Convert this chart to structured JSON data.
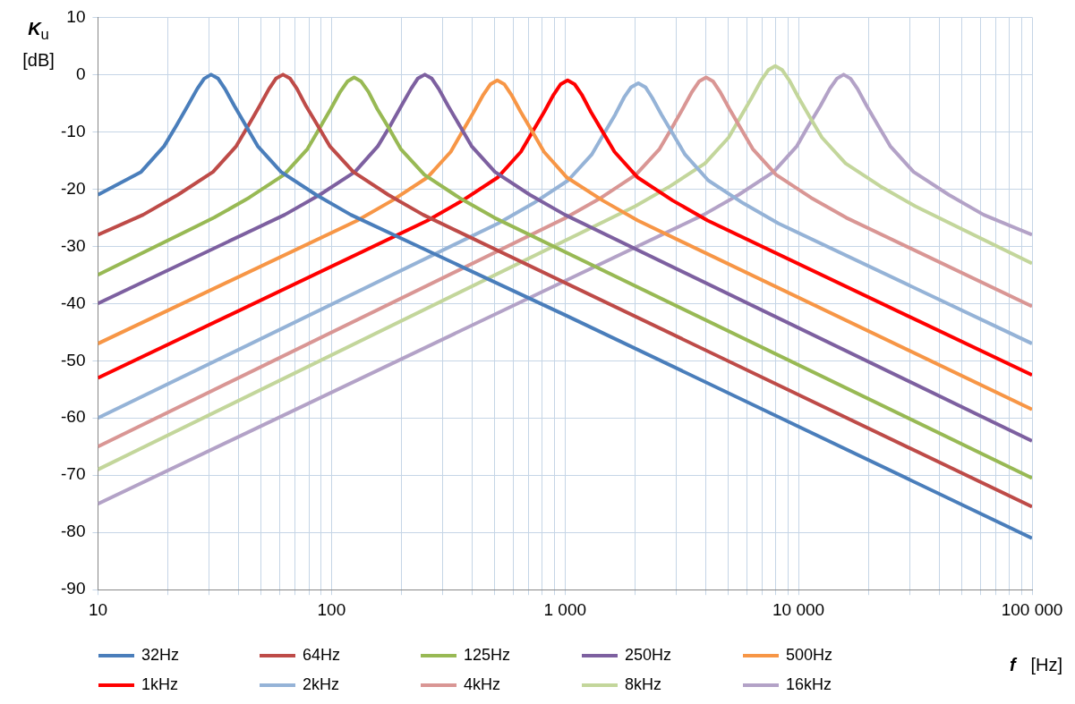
{
  "chart_data": {
    "type": "line",
    "xlabel": "f [Hz]",
    "ylabel": "K$_{u}$ [dB]",
    "log": "x",
    "grid": true,
    "legend": "bottom",
    "marker": "none",
    "line_style": "solid",
    "xlim": [
      10,
      100000
    ],
    "ylim": [
      -90,
      10
    ],
    "xticks": [
      10,
      {
        "value": 20,
        "label": null
      },
      {
        "value": 30,
        "label": null
      },
      {
        "value": 40,
        "label": null
      },
      {
        "value": 50,
        "label": null
      },
      {
        "value": 60,
        "label": null
      },
      {
        "value": 70,
        "label": null
      },
      {
        "value": 80,
        "label": null
      },
      {
        "value": 90,
        "label": null
      },
      100,
      {
        "value": 200,
        "label": null
      },
      {
        "value": 300,
        "label": null
      },
      {
        "value": 400,
        "label": null
      },
      {
        "value": 500,
        "label": null
      },
      {
        "value": 600,
        "label": null
      },
      {
        "value": 700,
        "label": null
      },
      {
        "value": 800,
        "label": null
      },
      {
        "value": 900,
        "label": null
      },
      {
        "value": 1000,
        "label": "1 000"
      },
      {
        "value": 2000,
        "label": null
      },
      {
        "value": 3000,
        "label": null
      },
      {
        "value": 4000,
        "label": null
      },
      {
        "value": 5000,
        "label": null
      },
      {
        "value": 6000,
        "label": null
      },
      {
        "value": 7000,
        "label": null
      },
      {
        "value": 8000,
        "label": null
      },
      {
        "value": 9000,
        "label": null
      },
      {
        "value": 10000,
        "label": "10 000"
      },
      {
        "value": 20000,
        "label": null
      },
      {
        "value": 30000,
        "label": null
      },
      {
        "value": 40000,
        "label": null
      },
      {
        "value": 50000,
        "label": null
      },
      {
        "value": 60000,
        "label": null
      },
      {
        "value": 70000,
        "label": null
      },
      {
        "value": 80000,
        "label": null
      },
      {
        "value": 90000,
        "label": null
      },
      {
        "value": 100000,
        "label": "100 000"
      }
    ],
    "yticks": [
      10,
      0,
      -10,
      -20,
      -30,
      -40,
      -50,
      -60,
      -70,
      -80,
      -90
    ],
    "series": [
      {
        "name": "32Hz",
        "color": "#4a7ebb",
        "x": [
          10,
          15.3,
          19.2,
          21.6,
          24.2,
          26.6,
          28.5,
          30.5,
          32.7,
          35,
          38.4,
          43.1,
          48.3,
          60.8,
          85.9,
          121,
          1000,
          100000
        ],
        "values": [
          -21,
          -17,
          -12.5,
          -9,
          -5.5,
          -2.5,
          -0.7,
          0,
          -0.7,
          -2.5,
          -5.5,
          -9,
          -12.5,
          -17,
          -21,
          -24.5,
          -42,
          -81
        ]
      },
      {
        "name": "64Hz",
        "color": "#be4b48",
        "x": [
          10,
          15.6,
          22,
          31.1,
          39.1,
          43.9,
          49.2,
          54,
          57.8,
          62,
          66.5,
          71.2,
          77.8,
          87.6,
          98.3,
          124,
          175,
          247,
          100000
        ],
        "values": [
          -28,
          -24.5,
          -21,
          -17,
          -12.5,
          -9,
          -5.5,
          -2.5,
          -0.7,
          0,
          -0.7,
          -2.5,
          -5.5,
          -9,
          -12.5,
          -17,
          -21,
          -24.5,
          -75.5
        ]
      },
      {
        "name": "125Hz",
        "color": "#98b954",
        "x": [
          10,
          31.4,
          44.4,
          62.6,
          78.9,
          88.5,
          99.3,
          109,
          117,
          125,
          134,
          144,
          157,
          177,
          198,
          250,
          352,
          498,
          100000
        ],
        "values": [
          -35,
          -25,
          -21.5,
          -17.5,
          -13,
          -9.5,
          -6,
          -3,
          -1.2,
          -0.5,
          -1.2,
          -3,
          -6,
          -9.5,
          -13,
          -17.5,
          -21.5,
          -25,
          -70.5
        ]
      },
      {
        "name": "250Hz",
        "color": "#7d60a0",
        "x": [
          10,
          63,
          89.1,
          126,
          158,
          178,
          199,
          219,
          234,
          251,
          269,
          288,
          316,
          355,
          398,
          501,
          707,
          1000,
          100000
        ],
        "values": [
          -40,
          -24.5,
          -21,
          -17,
          -12.5,
          -9,
          -5.5,
          -2.5,
          -0.7,
          0,
          -0.7,
          -2.5,
          -5.5,
          -9,
          -12.5,
          -17,
          -21,
          -24.5,
          -64
        ]
      },
      {
        "name": "500Hz",
        "color": "#f79646",
        "x": [
          10,
          129,
          182,
          257,
          324,
          363,
          407,
          447,
          479,
          513,
          550,
          589,
          646,
          725,
          813,
          1020,
          1450,
          2050,
          100000
        ],
        "values": [
          -47,
          -25.5,
          -22,
          -18,
          -13.5,
          -10,
          -6.5,
          -3.5,
          -1.7,
          -1,
          -1.7,
          -3.5,
          -6.5,
          -10,
          -13.5,
          -18,
          -22,
          -25.5,
          -58.5
        ]
      },
      {
        "name": "1kHz",
        "color": "#ff0000",
        "x": [
          10,
          258,
          364,
          514,
          647,
          726,
          815,
          894,
          957,
          1026,
          1100,
          1180,
          1290,
          1450,
          1630,
          2050,
          2890,
          4080,
          100000
        ],
        "values": [
          -53,
          -25.5,
          -22,
          -18,
          -13.5,
          -10,
          -6.5,
          -3.5,
          -1.7,
          -1,
          -1.7,
          -3.5,
          -6.5,
          -10,
          -13.5,
          -18,
          -22,
          -25.5,
          -52.5
        ]
      },
      {
        "name": "2kHz",
        "color": "#95b3d7",
        "x": [
          10,
          517,
          731,
          1030,
          1300,
          1460,
          1640,
          1790,
          1920,
          2060,
          2210,
          2360,
          2590,
          2910,
          3270,
          4110,
          5810,
          8200,
          100000
        ],
        "values": [
          -60,
          -26,
          -22.5,
          -18.5,
          -14,
          -10.5,
          -7,
          -4,
          -2.2,
          -1.5,
          -2.2,
          -4,
          -7,
          -10.5,
          -14,
          -18.5,
          -22.5,
          -26,
          -47
        ]
      },
      {
        "name": "4kHz",
        "color": "#d99694",
        "x": [
          10,
          1010,
          1430,
          2010,
          2540,
          2850,
          3190,
          3500,
          3750,
          4020,
          4310,
          4610,
          5060,
          5680,
          6370,
          8020,
          11300,
          16000,
          100000
        ],
        "values": [
          -65,
          -25,
          -21.5,
          -17.5,
          -13,
          -9.5,
          -6,
          -3,
          -1.2,
          -0.5,
          -1.2,
          -3,
          -6,
          -9.5,
          -13,
          -17.5,
          -21.5,
          -25,
          -40.5
        ]
      },
      {
        "name": "8kHz",
        "color": "#c3d69b",
        "x": [
          10,
          2000,
          2820,
          3980,
          5020,
          5630,
          6310,
          6920,
          7420,
          7950,
          8520,
          9130,
          10000,
          11200,
          12600,
          15900,
          22400,
          31600,
          100000
        ],
        "values": [
          -69,
          -23,
          -19.5,
          -15.5,
          -11,
          -7.5,
          -4,
          -1,
          0.8,
          1.5,
          0.8,
          -1,
          -4,
          -7.5,
          -11,
          -15.5,
          -19.5,
          -23,
          -33
        ]
      },
      {
        "name": "16kHz",
        "color": "#b3a2c7",
        "x": [
          10,
          3920,
          5540,
          7820,
          9840,
          11000,
          12400,
          13600,
          14600,
          15600,
          16700,
          17900,
          19600,
          22000,
          24700,
          31100,
          44000,
          62100,
          100000
        ],
        "values": [
          -75,
          -24.5,
          -21,
          -17,
          -12.5,
          -9,
          -5.5,
          -2.5,
          -0.7,
          0,
          -0.7,
          -2.5,
          -5.5,
          -9,
          -12.5,
          -17,
          -21,
          -24.5,
          -28
        ]
      }
    ]
  }
}
